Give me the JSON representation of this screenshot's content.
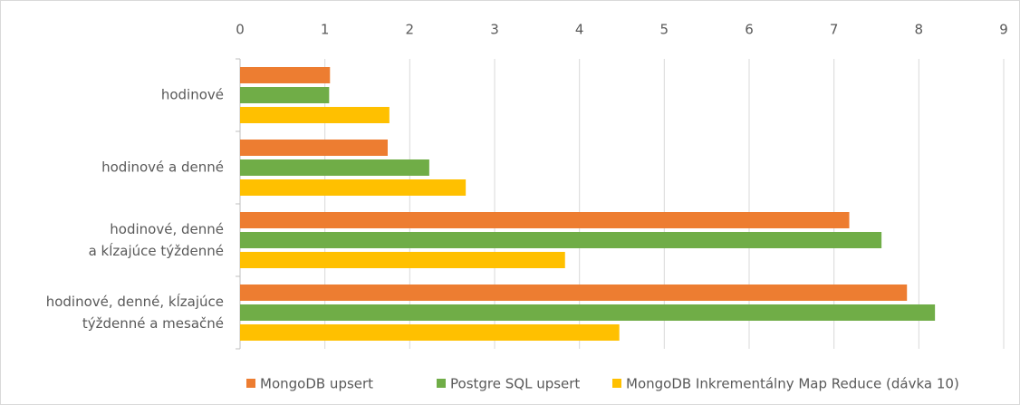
{
  "chart_data": {
    "type": "bar",
    "orientation": "horizontal",
    "categories": [
      "hodinové",
      "hodinové a denné",
      "hodinové, denné\na kĺzajúce týždenné",
      "hodinové, denné, kĺzajúce\ntýždenné a mesačné"
    ],
    "series": [
      {
        "name": "MongoDB upsert",
        "color": "#ed7d31",
        "values": [
          1.06,
          1.74,
          7.18,
          7.86
        ]
      },
      {
        "name": "Postgre SQL upsert",
        "color": "#70ad47",
        "values": [
          1.05,
          2.23,
          7.56,
          8.19
        ]
      },
      {
        "name": "MongoDB Inkrementálny Map Reduce (dávka 10)",
        "color": "#ffc000",
        "values": [
          1.76,
          2.66,
          3.83,
          4.47
        ]
      }
    ],
    "xlim": [
      0,
      9
    ],
    "xticks": [
      0,
      1,
      2,
      3,
      4,
      5,
      6,
      7,
      8,
      9
    ],
    "grid": true,
    "legend": "bottom"
  }
}
